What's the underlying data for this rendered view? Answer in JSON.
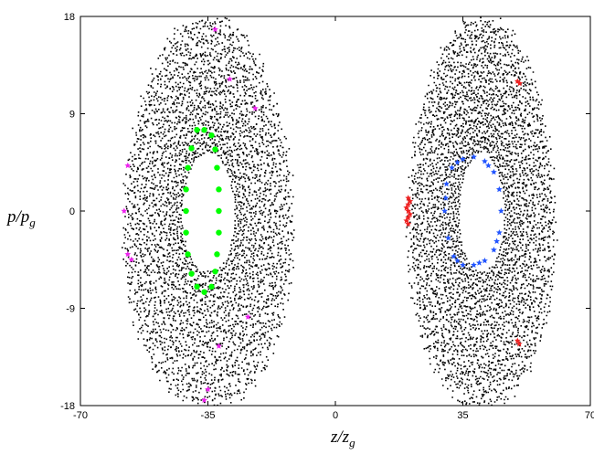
{
  "chart_data": {
    "type": "scatter",
    "xlabel": "z/z_g",
    "ylabel": "p/p_g",
    "xlim": [
      -70,
      70
    ],
    "ylim": [
      -18,
      18
    ],
    "x_ticks": [
      "-70",
      "-35",
      "0",
      "35",
      "70"
    ],
    "y_ticks": [
      "18",
      "9",
      "0",
      "-9",
      "-18"
    ],
    "grid": false,
    "legend": "none",
    "islands": [
      {
        "center": [
          -35,
          0
        ],
        "half_width": 23,
        "half_height": 18
      },
      {
        "center": [
          40,
          0
        ],
        "half_width": 20,
        "half_height": 18
      }
    ],
    "series": [
      {
        "color": "#00ff00",
        "marker": "circle",
        "points": [
          [
            -38,
            7.5
          ],
          [
            -36,
            7.5
          ],
          [
            -34,
            7
          ],
          [
            -33,
            5.7
          ],
          [
            -32.5,
            4
          ],
          [
            -32,
            2
          ],
          [
            -32,
            0
          ],
          [
            -32,
            -2
          ],
          [
            -32.5,
            -4
          ],
          [
            -33,
            -5.6
          ],
          [
            -34,
            -7
          ],
          [
            -36,
            -7.5
          ],
          [
            -38,
            -7
          ],
          [
            -39.5,
            -5.8
          ],
          [
            -40.5,
            -4
          ],
          [
            -41,
            -2
          ],
          [
            -41,
            0
          ],
          [
            -41,
            2
          ],
          [
            -40.5,
            4
          ],
          [
            -39.5,
            5.8
          ]
        ]
      },
      {
        "color": "#2255ff",
        "marker": "star",
        "points": [
          [
            38,
            5
          ],
          [
            41,
            4.6
          ],
          [
            43.5,
            3.6
          ],
          [
            45,
            2
          ],
          [
            45.5,
            0
          ],
          [
            45,
            -2
          ],
          [
            43.5,
            -3.6
          ],
          [
            41,
            -4.6
          ],
          [
            38,
            -5
          ],
          [
            35,
            -5
          ],
          [
            32.5,
            -4.2
          ],
          [
            31,
            -2.5
          ],
          [
            30,
            0
          ],
          [
            30.5,
            2.5
          ],
          [
            32,
            4
          ],
          [
            35,
            4.8
          ],
          [
            42,
            4.2
          ],
          [
            44.3,
            -2.8
          ],
          [
            39.5,
            -4.8
          ],
          [
            33.5,
            -4.6
          ],
          [
            30.3,
            1.2
          ],
          [
            33.5,
            4.5
          ]
        ]
      },
      {
        "color": "#ee2222",
        "marker": "star",
        "points": [
          [
            20,
            1.2
          ],
          [
            20,
            0.6
          ],
          [
            20,
            0
          ],
          [
            20,
            -0.6
          ],
          [
            20,
            -1.2
          ],
          [
            20.5,
            0.9
          ],
          [
            20.5,
            -0.3
          ],
          [
            19.5,
            0.3
          ],
          [
            19.5,
            -0.9
          ],
          [
            50,
            12
          ],
          [
            50.6,
            11.8
          ],
          [
            50,
            -12
          ],
          [
            50.5,
            -12.3
          ]
        ]
      },
      {
        "color": "#ee22ee",
        "marker": "star",
        "points": [
          [
            -58,
            0
          ],
          [
            -57,
            -4
          ],
          [
            -56,
            -4.5
          ],
          [
            -22,
            9.5
          ],
          [
            -32,
            -12.5
          ],
          [
            -35,
            -16.5
          ],
          [
            -36,
            -17.5
          ],
          [
            -57,
            4.2
          ],
          [
            -33,
            16.8
          ],
          [
            -24,
            -9.8
          ],
          [
            -29,
            12.2
          ]
        ]
      }
    ]
  }
}
